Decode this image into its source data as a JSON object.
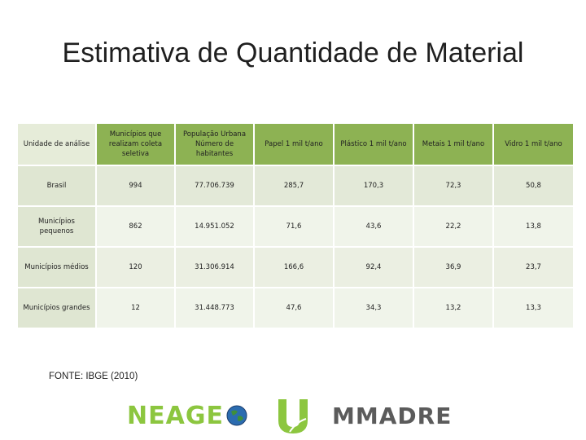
{
  "title": "Estimativa de Quantidade de Material",
  "table": {
    "headers": [
      "Unidade de análise",
      "Municípios que realizam coleta seletiva",
      "População Urbana Número de habitantes",
      "Papel 1 mil t/ano",
      "Plástico 1 mil t/ano",
      "Metais 1 mil t/ano",
      "Vidro 1 mil t/ano"
    ],
    "rows": [
      [
        "Brasil",
        "994",
        "77.706.739",
        "285,7",
        "170,3",
        "72,3",
        "50,8"
      ],
      [
        "Municípios pequenos",
        "862",
        "14.951.052",
        "71,6",
        "43,6",
        "22,2",
        "13,8"
      ],
      [
        "Municípios médios",
        "120",
        "31.306.914",
        "166,6",
        "92,4",
        "36,9",
        "23,7"
      ],
      [
        "Municípios grandes",
        "12",
        "31.448.773",
        "47,6",
        "34,3",
        "13,2",
        "13,3"
      ]
    ]
  },
  "source": "FONTE: IBGE (2010)",
  "logos": {
    "neage": "NEAGE",
    "mmadre": "MMADRE"
  },
  "colors": {
    "header_green": "#8db253",
    "row_light": "#f0f4ea",
    "row_mid": "#e3e9d8",
    "neage_green": "#8cc63f",
    "mmadre_gray": "#5b5b5b"
  }
}
